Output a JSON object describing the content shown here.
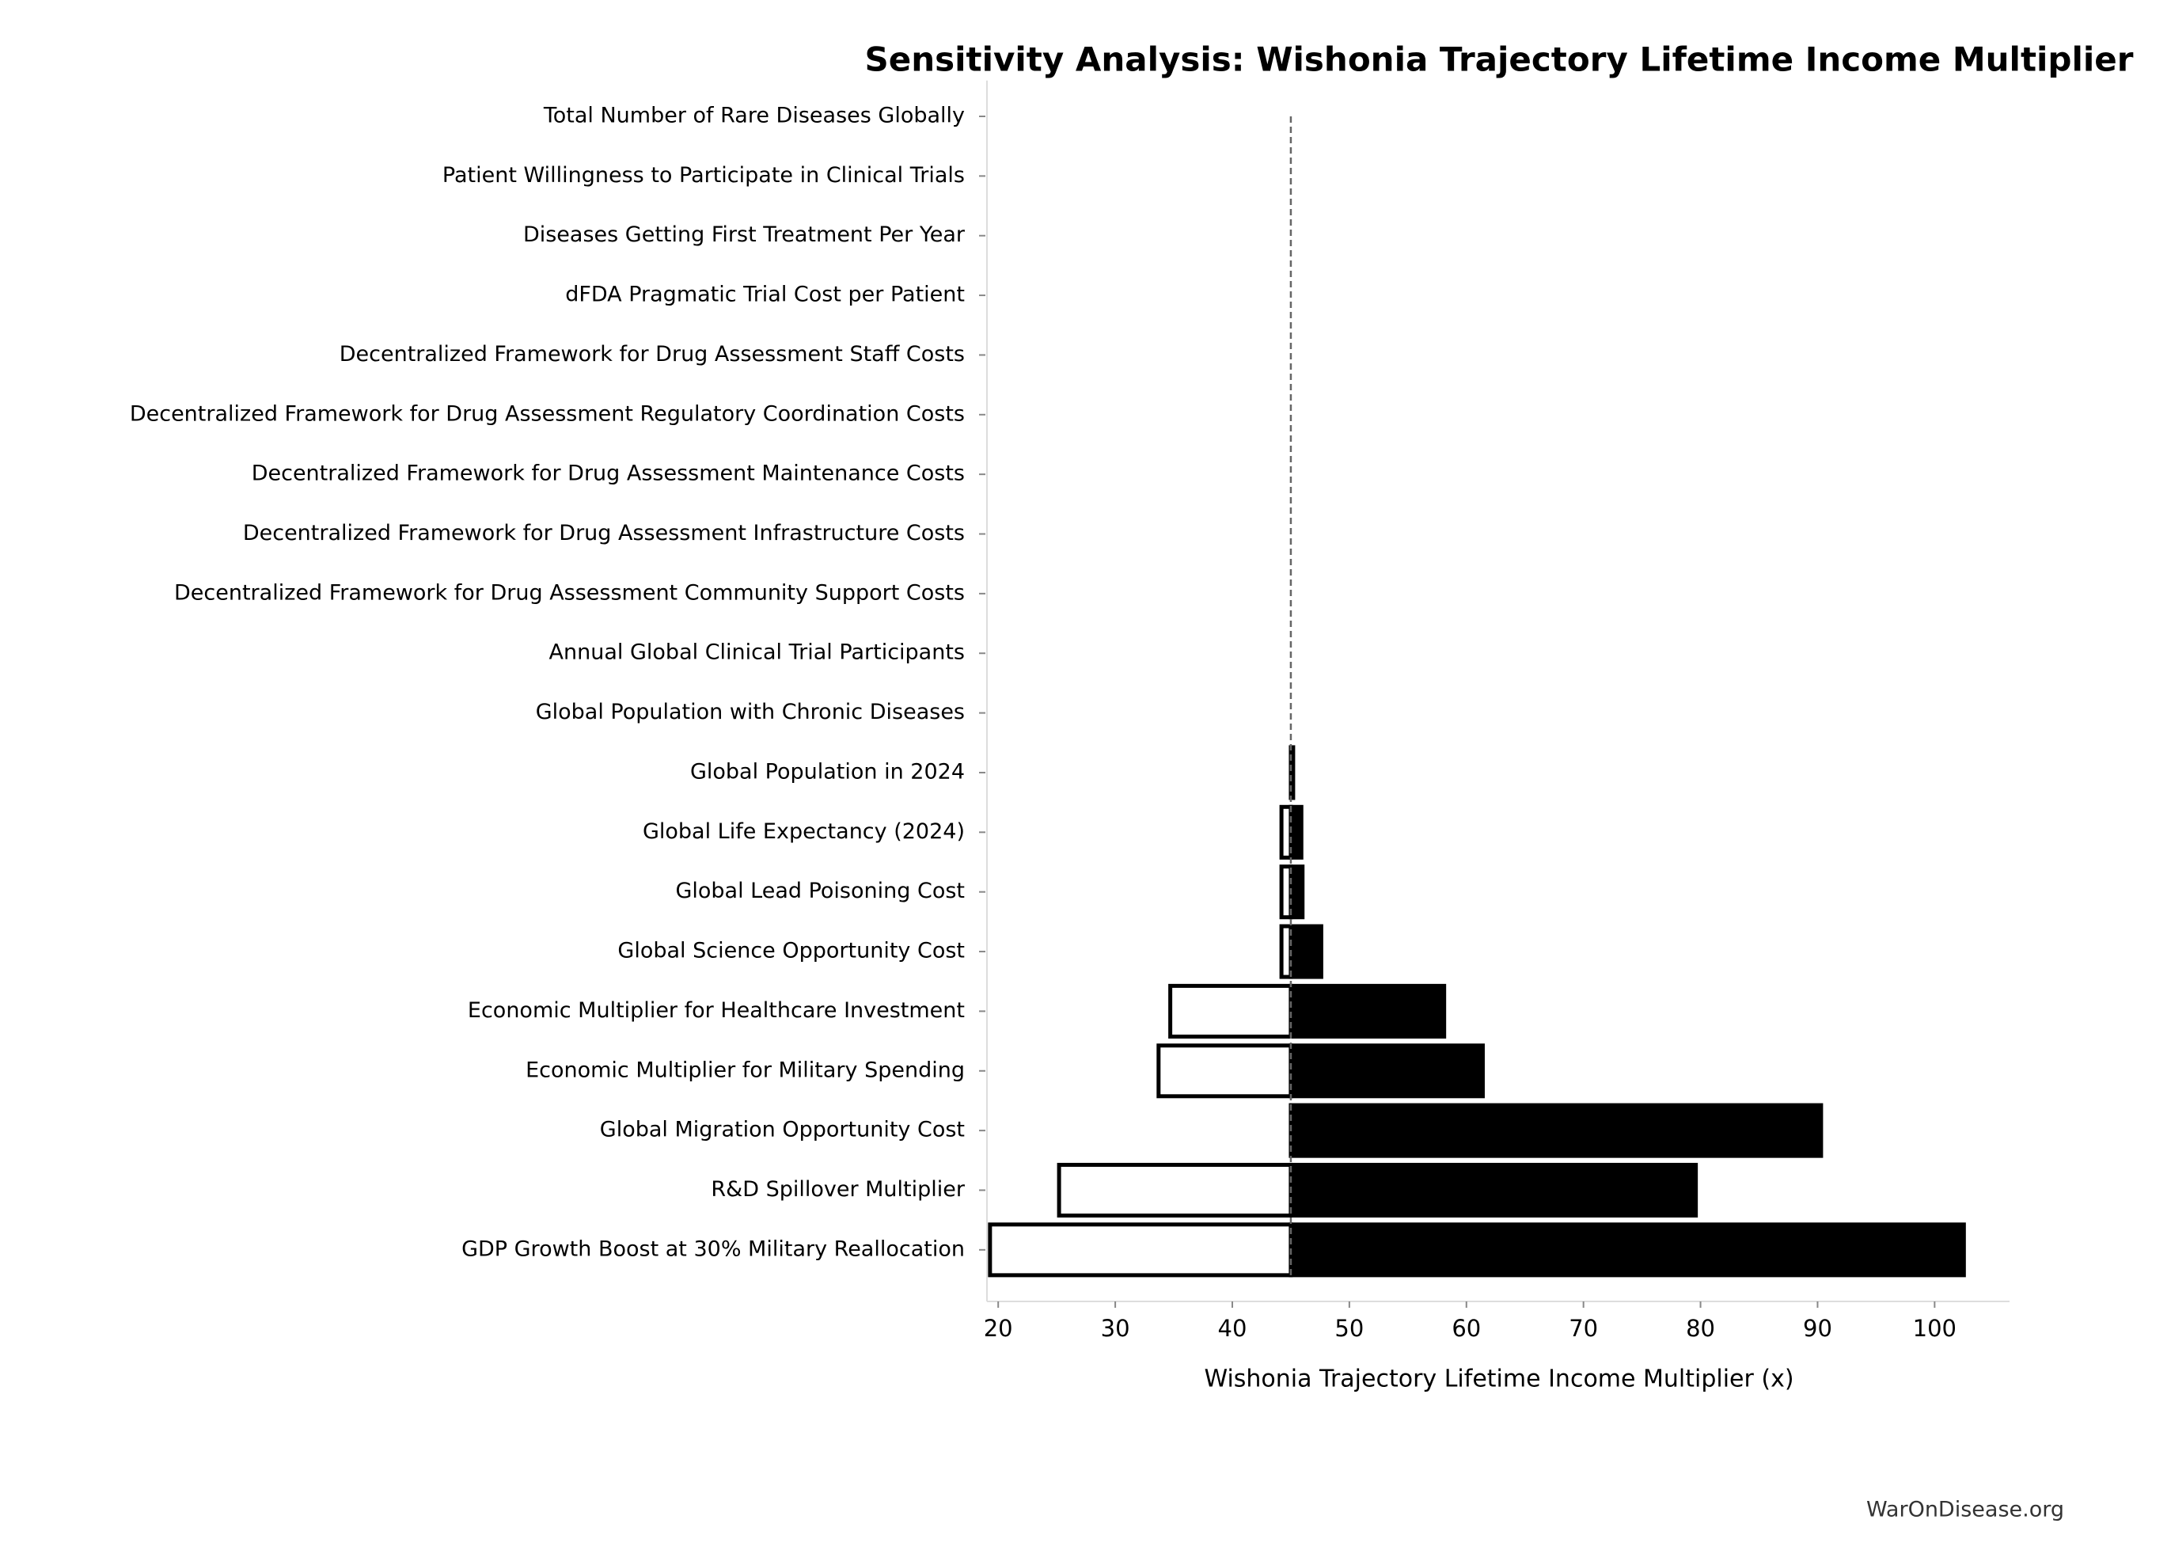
{
  "chart_data": {
    "type": "tornado",
    "title": "Sensitivity Analysis: Wishonia Trajectory Lifetime Income Multiplier",
    "x_label": "Wishonia Trajectory Lifetime Income Multiplier (x)",
    "footer": "WarOnDisease.org",
    "categories": [
      "Total Number of Rare Diseases Globally",
      "Patient Willingness to Participate in Clinical Trials",
      "Diseases Getting First Treatment Per Year",
      "dFDA Pragmatic Trial Cost per Patient",
      "Decentralized Framework for Drug Assessment Staff Costs",
      "Decentralized Framework for Drug Assessment Regulatory Coordination Costs",
      "Decentralized Framework for Drug Assessment Maintenance Costs",
      "Decentralized Framework for Drug Assessment Infrastructure Costs",
      "Decentralized Framework for Drug Assessment Community Support Costs",
      "Annual Global Clinical Trial Participants",
      "Global Population with Chronic Diseases",
      "Global Population in 2024",
      "Global Life Expectancy (2024)",
      "Global Lead Poisoning Cost",
      "Global Science Opportunity Cost",
      "Economic Multiplier for Healthcare Investment",
      "Economic Multiplier for Military Spending",
      "Global Migration Opportunity Cost",
      "R&D Spillover Multiplier",
      "GDP Growth Boost at 30% Military Reallocation"
    ],
    "baseline": 45,
    "low_values": [
      45,
      45,
      45,
      45,
      45,
      45,
      45,
      45,
      45,
      45,
      45,
      45,
      44.2,
      44.2,
      44.2,
      34.7,
      33.7,
      45,
      25.2,
      19.3
    ],
    "high_values": [
      45,
      45,
      45,
      45,
      45,
      45,
      45,
      45,
      45,
      45,
      45,
      45.2,
      45.9,
      46.0,
      47.6,
      58.1,
      61.4,
      90.3,
      79.6,
      102.5
    ],
    "low_color": "#ffffff",
    "high_color": "#000000",
    "xlim": [
      19.04,
      106.4
    ],
    "xticks": [
      20,
      30,
      40,
      50,
      60,
      70,
      80,
      90,
      100
    ]
  }
}
